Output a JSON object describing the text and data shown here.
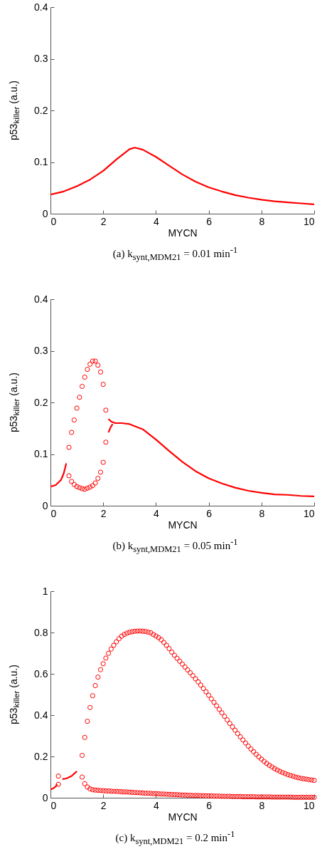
{
  "chart_data": [
    {
      "type": "line",
      "xlabel": "MYCN",
      "ylabel": "p53$_{killer}$ (a.u.)",
      "annotations": [
        "(a)  k$_{synt,MDM21}$ = 0.01 min$^{-1}$"
      ],
      "xlim": [
        0,
        10
      ],
      "ylim": [
        0,
        0.4
      ],
      "xticks": [
        0,
        2,
        4,
        6,
        8,
        10
      ],
      "yticks": [
        0,
        0.1,
        0.2,
        0.3,
        0.4
      ],
      "grid": false,
      "series": [
        {
          "color": "#ff0000",
          "x": [
            0,
            0.5,
            1,
            1.5,
            2,
            2.5,
            3,
            3.2,
            3.5,
            4,
            4.5,
            5,
            5.5,
            6,
            6.5,
            7,
            7.5,
            8,
            8.5,
            9,
            9.5,
            10
          ],
          "values": [
            0.037,
            0.043,
            0.053,
            0.066,
            0.083,
            0.105,
            0.125,
            0.128,
            0.124,
            0.11,
            0.093,
            0.076,
            0.062,
            0.051,
            0.043,
            0.036,
            0.031,
            0.027,
            0.024,
            0.022,
            0.02,
            0.018
          ]
        }
      ]
    },
    {
      "type": "line",
      "xlabel": "MYCN",
      "ylabel": "p53$_{killer}$ (a.u.)",
      "annotations": [
        "(b)  k$_{synt,MDM21}$ = 0.05 min$^{-1}$"
      ],
      "xlim": [
        0,
        10
      ],
      "ylim": [
        0,
        0.4
      ],
      "xticks": [
        0,
        2,
        4,
        6,
        8,
        10
      ],
      "yticks": [
        0,
        0.1,
        0.2,
        0.3,
        0.4
      ],
      "grid": false,
      "series": [
        {
          "color": "#ff0000",
          "x": [
            0,
            0.2,
            0.4,
            0.5,
            0.6
          ],
          "values": [
            0.037,
            0.04,
            0.05,
            0.062,
            0.082
          ]
        },
        {
          "color": "#ff0000",
          "x": [
            2.2,
            2.3,
            2.45,
            2.7,
            3,
            3.5,
            4,
            4.5,
            5,
            5.5,
            6,
            6.5,
            7,
            7.5,
            8,
            8.5,
            9,
            9.5,
            10
          ],
          "values": [
            0.168,
            0.163,
            0.16,
            0.16,
            0.158,
            0.148,
            0.128,
            0.106,
            0.085,
            0.067,
            0.053,
            0.043,
            0.035,
            0.029,
            0.025,
            0.022,
            0.021,
            0.019,
            0.018
          ]
        },
        {
          "color": "#ff0000",
          "x": [
            2.2,
            2.28,
            2.36
          ],
          "values": [
            0.142,
            0.152,
            0.158
          ]
        },
        {
          "type": "scatter",
          "marker": "circle",
          "color": "#ff0000",
          "x": [
            0.7,
            0.8,
            0.9,
            1.0,
            1.1,
            1.2,
            1.3,
            1.4,
            1.5,
            1.6,
            1.7,
            1.8,
            1.9,
            2.0,
            2.1
          ],
          "values": [
            0.113,
            0.142,
            0.166,
            0.189,
            0.21,
            0.231,
            0.249,
            0.264,
            0.274,
            0.28,
            0.28,
            0.272,
            0.259,
            0.235,
            0.185
          ]
        },
        {
          "type": "scatter",
          "marker": "circle",
          "color": "#ff0000",
          "x": [
            0.7,
            0.8,
            0.9,
            1.0,
            1.1,
            1.2,
            1.3,
            1.4,
            1.5,
            1.6,
            1.7,
            1.8,
            1.9,
            2.0,
            2.1
          ],
          "values": [
            0.058,
            0.047,
            0.041,
            0.037,
            0.035,
            0.033,
            0.032,
            0.034,
            0.036,
            0.039,
            0.044,
            0.053,
            0.065,
            0.084,
            0.123
          ]
        }
      ]
    },
    {
      "type": "line",
      "xlabel": "MYCN",
      "ylabel": "p53$_{killer}$ (a.u.)",
      "annotations": [
        "(c)  k$_{synt,MDM21}$ = 0.2 min$^{-1}$"
      ],
      "xlim": [
        0,
        10
      ],
      "ylim": [
        0,
        1
      ],
      "xticks": [
        0,
        2,
        4,
        6,
        8,
        10
      ],
      "yticks": [
        0,
        0.2,
        0.4,
        0.6,
        0.8,
        1
      ],
      "grid": false,
      "x": [
        1.2,
        1.3,
        1.4,
        1.5,
        1.6,
        1.7,
        1.8,
        1.9,
        2.0,
        2.1,
        2.2,
        2.3,
        2.4,
        2.5,
        2.6,
        2.7,
        2.8,
        2.9,
        3.0,
        3.1,
        3.2,
        3.3,
        3.4,
        3.5,
        3.6,
        3.7,
        3.8,
        3.9,
        4.0,
        4.1,
        4.2,
        4.3,
        4.4,
        4.5,
        4.6,
        4.7,
        4.8,
        4.9,
        5.0,
        5.1,
        5.2,
        5.3,
        5.4,
        5.5,
        5.6,
        5.7,
        5.8,
        5.9,
        6.0,
        6.1,
        6.2,
        6.3,
        6.4,
        6.5,
        6.6,
        6.7,
        6.8,
        6.9,
        7.0,
        7.1,
        7.2,
        7.3,
        7.4,
        7.5,
        7.6,
        7.7,
        7.8,
        7.9,
        8.0,
        8.1,
        8.2,
        8.3,
        8.4,
        8.5,
        8.6,
        8.7,
        8.8,
        8.9,
        9.0,
        9.1,
        9.2,
        9.3,
        9.4,
        9.5,
        9.6,
        9.7,
        9.8,
        9.9,
        10.0
      ],
      "series": [
        {
          "color": "#ff0000",
          "x": [
            0,
            0.1,
            0.2,
            0.25
          ],
          "values": [
            0.04,
            0.045,
            0.055,
            0.065
          ]
        },
        {
          "color": "#ff0000",
          "x": [
            0.45,
            0.6,
            0.8,
            1.0
          ],
          "values": [
            0.09,
            0.093,
            0.105,
            0.128
          ]
        },
        {
          "type": "scatter",
          "marker": "circle",
          "color": "#ff0000",
          "x": [
            0.3,
            0.3
          ],
          "values": [
            0.105,
            0.065
          ]
        },
        {
          "type": "scatter",
          "marker": "circle",
          "color": "#ff0000",
          "values": [
            0.205,
            0.292,
            0.37,
            0.437,
            0.494,
            0.543,
            0.584,
            0.62,
            0.649,
            0.676,
            0.699,
            0.72,
            0.738,
            0.755,
            0.77,
            0.782,
            0.791,
            0.797,
            0.801,
            0.804,
            0.806,
            0.807,
            0.807,
            0.806,
            0.805,
            0.802,
            0.799,
            0.79,
            0.783,
            0.775,
            0.765,
            0.752,
            0.738,
            0.722,
            0.705,
            0.69,
            0.675,
            0.661,
            0.647,
            0.633,
            0.619,
            0.605,
            0.591,
            0.576,
            0.561,
            0.545,
            0.529,
            0.513,
            0.496,
            0.479,
            0.462,
            0.445,
            0.428,
            0.411,
            0.394,
            0.377,
            0.36,
            0.343,
            0.327,
            0.311,
            0.295,
            0.28,
            0.265,
            0.25,
            0.236,
            0.223,
            0.21,
            0.198,
            0.187,
            0.176,
            0.166,
            0.157,
            0.149,
            0.141,
            0.134,
            0.128,
            0.122,
            0.117,
            0.112,
            0.108,
            0.104,
            0.1,
            0.097,
            0.094,
            0.092,
            0.09,
            0.088,
            0.086,
            0.084
          ]
        },
        {
          "type": "scatter",
          "marker": "circle",
          "color": "#ff0000",
          "values": [
            0.1,
            0.068,
            0.052,
            0.043,
            0.039,
            0.037,
            0.036,
            0.035,
            0.034,
            0.033,
            0.033,
            0.032,
            0.031,
            0.031,
            0.03,
            0.029,
            0.028,
            0.028,
            0.027,
            0.026,
            0.025,
            0.025,
            0.024,
            0.023,
            0.022,
            0.022,
            0.021,
            0.02,
            0.02,
            0.019,
            0.018,
            0.018,
            0.017,
            0.016,
            0.016,
            0.015,
            0.015,
            0.014,
            0.013,
            0.013,
            0.012,
            0.012,
            0.011,
            0.011,
            0.011,
            0.01,
            0.01,
            0.009,
            0.009,
            0.009,
            0.008,
            0.008,
            0.008,
            0.007,
            0.007,
            0.007,
            0.007,
            0.006,
            0.006,
            0.006,
            0.006,
            0.005,
            0.005,
            0.005,
            0.005,
            0.005,
            0.004,
            0.004,
            0.004,
            0.004,
            0.004,
            0.004,
            0.003,
            0.003,
            0.003,
            0.003,
            0.003,
            0.003,
            0.003,
            0.003,
            0.002,
            0.002,
            0.002,
            0.002,
            0.002,
            0.002,
            0.002,
            0.002,
            0.002
          ]
        }
      ]
    }
  ]
}
